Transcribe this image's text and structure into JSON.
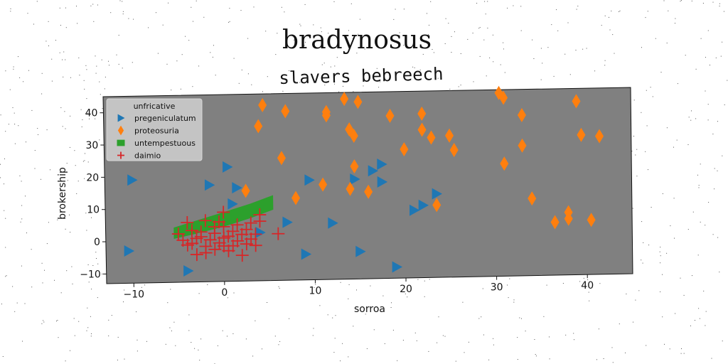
{
  "chart_data": {
    "type": "scatter",
    "title": "bradynosus",
    "subtitle": "slavers bebreech",
    "xlabel": "sorroa",
    "ylabel": "brokership",
    "xlim": [
      -13,
      45
    ],
    "ylim": [
      -13,
      45
    ],
    "x_ticks": [
      -10,
      0,
      10,
      20,
      30,
      40
    ],
    "y_ticks": [
      -10,
      0,
      10,
      20,
      30,
      40
    ],
    "x_tick_labels": [
      "−10",
      "0",
      "10",
      "20",
      "30",
      "40"
    ],
    "y_tick_labels": [
      "−10",
      "0",
      "10",
      "20",
      "30",
      "40"
    ],
    "grid": false,
    "plot_background": "#808080",
    "legend": {
      "title": "unfricative",
      "placement": "top-left"
    },
    "series": [
      {
        "name": "pregeniculatum",
        "marker": "triangle-right",
        "color": "#1f77b4",
        "points": [
          [
            -10,
            19
          ],
          [
            -10.5,
            -3
          ],
          [
            -4,
            -9.5
          ],
          [
            -1.5,
            17
          ],
          [
            0.5,
            22.5
          ],
          [
            1.5,
            16
          ],
          [
            1,
            11
          ],
          [
            4,
            2
          ],
          [
            7,
            5
          ],
          [
            9,
            -5
          ],
          [
            9.5,
            18
          ],
          [
            12,
            4.5
          ],
          [
            14.5,
            18
          ],
          [
            15,
            -4.5
          ],
          [
            16.5,
            20.5
          ],
          [
            17.5,
            17
          ],
          [
            17.5,
            22.5
          ],
          [
            19,
            -9.5
          ],
          [
            21,
            8
          ],
          [
            22,
            9.5
          ],
          [
            23.5,
            13
          ]
        ]
      },
      {
        "name": "proteosuria",
        "marker": "thin-diamond",
        "color": "#ff7f0e",
        "points": [
          [
            2.5,
            15
          ],
          [
            4,
            35
          ],
          [
            4.5,
            41.5
          ],
          [
            6.5,
            25
          ],
          [
            7,
            39.5
          ],
          [
            8,
            12.5
          ],
          [
            11,
            16.5
          ],
          [
            11.5,
            39
          ],
          [
            11.5,
            38
          ],
          [
            13.5,
            43
          ],
          [
            14,
            15
          ],
          [
            14,
            33.5
          ],
          [
            14.5,
            31.5
          ],
          [
            14.5,
            22
          ],
          [
            15,
            42
          ],
          [
            16,
            14
          ],
          [
            18.5,
            37.5
          ],
          [
            20,
            27
          ],
          [
            22,
            33
          ],
          [
            22,
            38
          ],
          [
            23,
            30.5
          ],
          [
            23.5,
            9.5
          ],
          [
            25,
            31
          ],
          [
            25.5,
            26.5
          ],
          [
            30.5,
            44
          ],
          [
            31,
            42.5
          ],
          [
            31,
            22
          ],
          [
            33,
            37
          ],
          [
            33,
            27.5
          ],
          [
            34,
            11
          ],
          [
            36.5,
            3.5
          ],
          [
            38,
            4.5
          ],
          [
            38,
            6.5
          ],
          [
            39,
            41
          ],
          [
            39.5,
            30.5
          ],
          [
            40.5,
            4
          ],
          [
            41.5,
            30
          ]
        ]
      },
      {
        "name": "untempestuous",
        "marker": "polygon",
        "color": "#2ca02c",
        "points": [
          [
            -5.5,
            0.5
          ],
          [
            -5.5,
            4
          ],
          [
            0,
            8.5
          ],
          [
            3,
            11
          ],
          [
            5.5,
            13.5
          ],
          [
            5.5,
            9
          ],
          [
            3,
            6.5
          ],
          [
            0,
            4
          ],
          [
            -3,
            2
          ]
        ]
      },
      {
        "name": "daimio",
        "marker": "plus",
        "color": "#d62728",
        "points": [
          [
            -5,
            2
          ],
          [
            -4.5,
            0
          ],
          [
            -4,
            5.5
          ],
          [
            -4,
            -1.5
          ],
          [
            -3.5,
            3
          ],
          [
            -3.5,
            -1
          ],
          [
            -3,
            -4.5
          ],
          [
            -3,
            0.5
          ],
          [
            -2.5,
            2.5
          ],
          [
            -2,
            -2
          ],
          [
            -2,
            -4
          ],
          [
            -2,
            6
          ],
          [
            -1.5,
            0
          ],
          [
            -1,
            -3
          ],
          [
            -1,
            2
          ],
          [
            -0.5,
            -1
          ],
          [
            0,
            0.5
          ],
          [
            0,
            -2
          ],
          [
            0,
            4
          ],
          [
            0.5,
            1
          ],
          [
            0.5,
            -3.5
          ],
          [
            1,
            2.5
          ],
          [
            1.5,
            -0.5
          ],
          [
            1.5,
            4.5
          ],
          [
            2,
            -5
          ],
          [
            2,
            1.5
          ],
          [
            2.5,
            3
          ],
          [
            2.5,
            -1.5
          ],
          [
            3,
            0
          ],
          [
            3,
            5
          ],
          [
            3.5,
            -2
          ],
          [
            3.5,
            1.5
          ],
          [
            4,
            5.5
          ],
          [
            4,
            7.5
          ],
          [
            6,
            1.5
          ],
          [
            0,
            8.5
          ],
          [
            -0.5,
            5.5
          ],
          [
            -2.5,
            1
          ],
          [
            -1,
            4
          ],
          [
            1,
            -2
          ]
        ]
      }
    ]
  }
}
